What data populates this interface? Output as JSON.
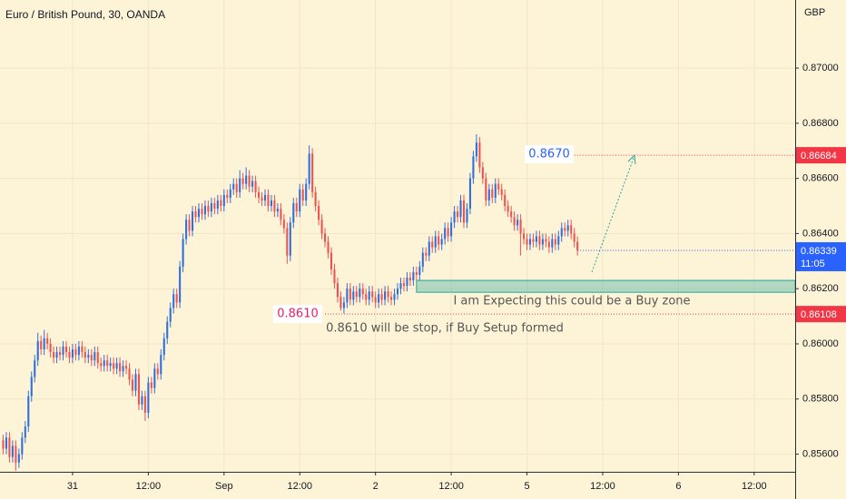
{
  "chart_data": {
    "type": "candlestick",
    "title": "Euro / British Pound, 30, OANDA",
    "currency": "GBP",
    "up_color": "#2f6fe0",
    "down_color": "#ef5350",
    "grid": true,
    "xlim": [
      0,
      252
    ],
    "ylim": [
      0.85536,
      0.87247
    ],
    "xticks": [
      {
        "value": 23,
        "label": "31"
      },
      {
        "value": 47,
        "label": "12:00"
      },
      {
        "value": 71,
        "label": "Sep"
      },
      {
        "value": 95,
        "label": "12:00"
      },
      {
        "value": 119,
        "label": "2"
      },
      {
        "value": 143,
        "label": "12:00"
      },
      {
        "value": 167,
        "label": "5"
      },
      {
        "value": 191,
        "label": "12:00"
      },
      {
        "value": 215,
        "label": "6"
      },
      {
        "value": 239,
        "label": "12:00"
      }
    ],
    "yticks": [
      {
        "value": 0.856,
        "label": "0.85600"
      },
      {
        "value": 0.858,
        "label": "0.85800"
      },
      {
        "value": 0.86,
        "label": "0.86000"
      },
      {
        "value": 0.862,
        "label": "0.86200"
      },
      {
        "value": 0.864,
        "label": "0.86400"
      },
      {
        "value": 0.866,
        "label": "0.86600"
      },
      {
        "value": 0.868,
        "label": "0.86800"
      },
      {
        "value": 0.87,
        "label": "0.87000"
      }
    ],
    "x": [
      1,
      2,
      3,
      4,
      5,
      6,
      7,
      8,
      9,
      10,
      11,
      12,
      13,
      14,
      15,
      16,
      17,
      18,
      19,
      20,
      21,
      22,
      23,
      24,
      25,
      26,
      27,
      28,
      29,
      30,
      31,
      32,
      33,
      34,
      35,
      36,
      37,
      38,
      39,
      40,
      41,
      42,
      43,
      44,
      45,
      46,
      47,
      48,
      49,
      50,
      51,
      52,
      53,
      54,
      55,
      56,
      57,
      58,
      59,
      60,
      61,
      62,
      63,
      64,
      65,
      66,
      67,
      68,
      69,
      70,
      71,
      72,
      73,
      74,
      75,
      76,
      77,
      78,
      79,
      80,
      81,
      82,
      83,
      84,
      85,
      86,
      87,
      88,
      89,
      90,
      91,
      92,
      93,
      94,
      95,
      96,
      97,
      98,
      99,
      100,
      101,
      102,
      103,
      104,
      105,
      106,
      107,
      108,
      109,
      110,
      111,
      112,
      113,
      114,
      115,
      116,
      117,
      118,
      119,
      120,
      121,
      122,
      123,
      124,
      125,
      126,
      127,
      128,
      129,
      130,
      131,
      132,
      133,
      134,
      135,
      136,
      137,
      138,
      139,
      140,
      141,
      142,
      143,
      144,
      145,
      146,
      147,
      148,
      149,
      150,
      151,
      152,
      153,
      154,
      155,
      156,
      157,
      158,
      159,
      160,
      161,
      162,
      163,
      164,
      165,
      166,
      167,
      168,
      169,
      170,
      171,
      172,
      173,
      174,
      175,
      176,
      177,
      178,
      179,
      180,
      181,
      182,
      183
    ],
    "ohlc": [
      [
        0.8565,
        0.8567,
        0.856,
        0.8562
      ],
      [
        0.8562,
        0.8568,
        0.856,
        0.8566
      ],
      [
        0.8566,
        0.8568,
        0.8557,
        0.8559
      ],
      [
        0.8559,
        0.8565,
        0.8557,
        0.8563
      ],
      [
        0.8563,
        0.8565,
        0.8554,
        0.8557
      ],
      [
        0.8557,
        0.8562,
        0.8555,
        0.856
      ],
      [
        0.856,
        0.8568,
        0.8558,
        0.8566
      ],
      [
        0.8566,
        0.8572,
        0.8564,
        0.857
      ],
      [
        0.857,
        0.8583,
        0.8568,
        0.8581
      ],
      [
        0.8581,
        0.859,
        0.8579,
        0.8588
      ],
      [
        0.8588,
        0.8596,
        0.8586,
        0.8594
      ],
      [
        0.8594,
        0.8604,
        0.8592,
        0.8601
      ],
      [
        0.8601,
        0.8603,
        0.8596,
        0.8598
      ],
      [
        0.8598,
        0.8605,
        0.8596,
        0.8602
      ],
      [
        0.8602,
        0.8604,
        0.8598,
        0.86
      ],
      [
        0.86,
        0.8602,
        0.8595,
        0.8597
      ],
      [
        0.8597,
        0.8599,
        0.8593,
        0.8595
      ],
      [
        0.8595,
        0.8599,
        0.8593,
        0.8597
      ],
      [
        0.8597,
        0.8599,
        0.8594,
        0.8596
      ],
      [
        0.8596,
        0.8601,
        0.8594,
        0.8599
      ],
      [
        0.8599,
        0.8601,
        0.8595,
        0.8597
      ],
      [
        0.8597,
        0.8599,
        0.8593,
        0.8595
      ],
      [
        0.8595,
        0.86,
        0.8593,
        0.8598
      ],
      [
        0.8598,
        0.86,
        0.8594,
        0.8596
      ],
      [
        0.8596,
        0.8601,
        0.8594,
        0.8599
      ],
      [
        0.8599,
        0.8601,
        0.8595,
        0.8597
      ],
      [
        0.8597,
        0.8599,
        0.8593,
        0.8595
      ],
      [
        0.8595,
        0.8598,
        0.8593,
        0.8596
      ],
      [
        0.8596,
        0.8598,
        0.8592,
        0.8594
      ],
      [
        0.8594,
        0.8599,
        0.8592,
        0.8597
      ],
      [
        0.8597,
        0.8599,
        0.8591,
        0.8593
      ],
      [
        0.8593,
        0.8595,
        0.859,
        0.8592
      ],
      [
        0.8592,
        0.8596,
        0.859,
        0.8594
      ],
      [
        0.8594,
        0.8596,
        0.859,
        0.8592
      ],
      [
        0.8592,
        0.8595,
        0.859,
        0.8593
      ],
      [
        0.8593,
        0.8595,
        0.8589,
        0.8591
      ],
      [
        0.8591,
        0.8595,
        0.8589,
        0.8593
      ],
      [
        0.8593,
        0.8595,
        0.8588,
        0.859
      ],
      [
        0.859,
        0.8594,
        0.8588,
        0.8592
      ],
      [
        0.8592,
        0.8594,
        0.8589,
        0.8591
      ],
      [
        0.8591,
        0.8593,
        0.8585,
        0.8587
      ],
      [
        0.8587,
        0.8589,
        0.8581,
        0.8583
      ],
      [
        0.8583,
        0.8591,
        0.8581,
        0.8589
      ],
      [
        0.8589,
        0.8591,
        0.8576,
        0.8578
      ],
      [
        0.8578,
        0.8583,
        0.8576,
        0.8581
      ],
      [
        0.8581,
        0.8583,
        0.8572,
        0.8575
      ],
      [
        0.8575,
        0.8588,
        0.8573,
        0.8586
      ],
      [
        0.8586,
        0.8588,
        0.8582,
        0.8584
      ],
      [
        0.8584,
        0.8593,
        0.8582,
        0.8591
      ],
      [
        0.8591,
        0.8593,
        0.8587,
        0.8589
      ],
      [
        0.8589,
        0.8598,
        0.8587,
        0.8596
      ],
      [
        0.8596,
        0.8604,
        0.8594,
        0.8602
      ],
      [
        0.8602,
        0.861,
        0.86,
        0.8608
      ],
      [
        0.8608,
        0.8615,
        0.8606,
        0.8613
      ],
      [
        0.8613,
        0.862,
        0.8611,
        0.8618
      ],
      [
        0.8618,
        0.862,
        0.8613,
        0.8615
      ],
      [
        0.8615,
        0.863,
        0.8613,
        0.8628
      ],
      [
        0.8628,
        0.864,
        0.8626,
        0.8638
      ],
      [
        0.8638,
        0.8647,
        0.8636,
        0.8645
      ],
      [
        0.8645,
        0.8647,
        0.8639,
        0.8641
      ],
      [
        0.8641,
        0.865,
        0.8639,
        0.8648
      ],
      [
        0.8648,
        0.865,
        0.8644,
        0.8646
      ],
      [
        0.8646,
        0.8651,
        0.8644,
        0.8649
      ],
      [
        0.8649,
        0.8651,
        0.8645,
        0.8647
      ],
      [
        0.8647,
        0.8652,
        0.8645,
        0.865
      ],
      [
        0.865,
        0.8652,
        0.8646,
        0.8648
      ],
      [
        0.8648,
        0.8653,
        0.8646,
        0.8651
      ],
      [
        0.8651,
        0.8653,
        0.8647,
        0.8649
      ],
      [
        0.8649,
        0.8654,
        0.8647,
        0.8652
      ],
      [
        0.8652,
        0.8654,
        0.8648,
        0.865
      ],
      [
        0.865,
        0.8656,
        0.8648,
        0.8654
      ],
      [
        0.8654,
        0.8656,
        0.8651,
        0.8653
      ],
      [
        0.8653,
        0.8658,
        0.8651,
        0.8656
      ],
      [
        0.8656,
        0.866,
        0.8654,
        0.8658
      ],
      [
        0.8658,
        0.866,
        0.8653,
        0.8655
      ],
      [
        0.8655,
        0.8663,
        0.8653,
        0.866
      ],
      [
        0.866,
        0.8662,
        0.8656,
        0.8658
      ],
      [
        0.8658,
        0.8664,
        0.8656,
        0.8661
      ],
      [
        0.8661,
        0.8663,
        0.8655,
        0.8657
      ],
      [
        0.8657,
        0.8661,
        0.8655,
        0.8659
      ],
      [
        0.8659,
        0.8661,
        0.8653,
        0.8655
      ],
      [
        0.8655,
        0.8657,
        0.8651,
        0.8653
      ],
      [
        0.8653,
        0.8655,
        0.865,
        0.8652
      ],
      [
        0.8652,
        0.8656,
        0.865,
        0.8654
      ],
      [
        0.8654,
        0.8656,
        0.8648,
        0.865
      ],
      [
        0.865,
        0.8654,
        0.8648,
        0.8652
      ],
      [
        0.8652,
        0.8654,
        0.8646,
        0.8648
      ],
      [
        0.8648,
        0.8651,
        0.8646,
        0.8649
      ],
      [
        0.8649,
        0.8651,
        0.8643,
        0.8645
      ],
      [
        0.8645,
        0.8647,
        0.864,
        0.8642
      ],
      [
        0.8642,
        0.8644,
        0.8629,
        0.8632
      ],
      [
        0.8632,
        0.8646,
        0.863,
        0.8644
      ],
      [
        0.8644,
        0.8653,
        0.8642,
        0.8651
      ],
      [
        0.8651,
        0.8653,
        0.8646,
        0.8648
      ],
      [
        0.8648,
        0.8658,
        0.8646,
        0.8656
      ],
      [
        0.8656,
        0.8658,
        0.865,
        0.8652
      ],
      [
        0.8652,
        0.866,
        0.865,
        0.8658
      ],
      [
        0.8658,
        0.8672,
        0.8656,
        0.8669
      ],
      [
        0.8669,
        0.8671,
        0.8653,
        0.8655
      ],
      [
        0.8655,
        0.8657,
        0.8648,
        0.865
      ],
      [
        0.865,
        0.8652,
        0.8643,
        0.8645
      ],
      [
        0.8645,
        0.8647,
        0.8638,
        0.864
      ],
      [
        0.864,
        0.8642,
        0.8635,
        0.8637
      ],
      [
        0.8637,
        0.8639,
        0.8631,
        0.8633
      ],
      [
        0.8633,
        0.8635,
        0.8625,
        0.8627
      ],
      [
        0.8627,
        0.8629,
        0.862,
        0.8622
      ],
      [
        0.8622,
        0.8624,
        0.8615,
        0.8617
      ],
      [
        0.8617,
        0.8619,
        0.8612,
        0.8613
      ],
      [
        0.8613,
        0.8617,
        0.8611,
        0.8615
      ],
      [
        0.8615,
        0.8622,
        0.8613,
        0.862
      ],
      [
        0.862,
        0.8622,
        0.8614,
        0.8616
      ],
      [
        0.8616,
        0.8621,
        0.8614,
        0.8619
      ],
      [
        0.8619,
        0.8621,
        0.8615,
        0.8617
      ],
      [
        0.8617,
        0.8622,
        0.8615,
        0.862
      ],
      [
        0.862,
        0.8622,
        0.8616,
        0.8618
      ],
      [
        0.8618,
        0.862,
        0.8614,
        0.8616
      ],
      [
        0.8616,
        0.8621,
        0.8614,
        0.8619
      ],
      [
        0.8619,
        0.8621,
        0.8615,
        0.8617
      ],
      [
        0.8617,
        0.8619,
        0.8613,
        0.8615
      ],
      [
        0.8615,
        0.862,
        0.8613,
        0.8618
      ],
      [
        0.8618,
        0.862,
        0.8614,
        0.8616
      ],
      [
        0.8616,
        0.8621,
        0.8614,
        0.8619
      ],
      [
        0.8619,
        0.8621,
        0.8615,
        0.8617
      ],
      [
        0.8617,
        0.8619,
        0.8614,
        0.8616
      ],
      [
        0.8616,
        0.862,
        0.8614,
        0.8618
      ],
      [
        0.8618,
        0.8622,
        0.8616,
        0.862
      ],
      [
        0.862,
        0.8624,
        0.8618,
        0.8622
      ],
      [
        0.8622,
        0.8624,
        0.8619,
        0.8621
      ],
      [
        0.8621,
        0.8626,
        0.8619,
        0.8624
      ],
      [
        0.8624,
        0.8626,
        0.8621,
        0.8623
      ],
      [
        0.8623,
        0.8628,
        0.8621,
        0.8626
      ],
      [
        0.8626,
        0.8628,
        0.8623,
        0.8625
      ],
      [
        0.8625,
        0.863,
        0.8623,
        0.8628
      ],
      [
        0.8628,
        0.8635,
        0.8626,
        0.8633
      ],
      [
        0.8633,
        0.8635,
        0.863,
        0.8632
      ],
      [
        0.8632,
        0.8639,
        0.863,
        0.8637
      ],
      [
        0.8637,
        0.8639,
        0.8633,
        0.8635
      ],
      [
        0.8635,
        0.8641,
        0.8633,
        0.8639
      ],
      [
        0.8639,
        0.8641,
        0.8634,
        0.8636
      ],
      [
        0.8636,
        0.864,
        0.8634,
        0.8638
      ],
      [
        0.8638,
        0.8644,
        0.8636,
        0.8642
      ],
      [
        0.8642,
        0.8644,
        0.8637,
        0.8639
      ],
      [
        0.8639,
        0.8646,
        0.8637,
        0.8644
      ],
      [
        0.8644,
        0.865,
        0.8642,
        0.8648
      ],
      [
        0.8648,
        0.865,
        0.8644,
        0.8646
      ],
      [
        0.8646,
        0.8654,
        0.8644,
        0.8652
      ],
      [
        0.8652,
        0.8654,
        0.8642,
        0.8644
      ],
      [
        0.8644,
        0.8651,
        0.8642,
        0.8649
      ],
      [
        0.8649,
        0.8662,
        0.8647,
        0.866
      ],
      [
        0.866,
        0.867,
        0.8658,
        0.8668
      ],
      [
        0.8668,
        0.8676,
        0.8666,
        0.8673
      ],
      [
        0.8673,
        0.8675,
        0.8662,
        0.8664
      ],
      [
        0.8664,
        0.8666,
        0.8658,
        0.866
      ],
      [
        0.866,
        0.8662,
        0.865,
        0.8652
      ],
      [
        0.8652,
        0.8658,
        0.865,
        0.8656
      ],
      [
        0.8656,
        0.8658,
        0.8651,
        0.8653
      ],
      [
        0.8653,
        0.866,
        0.8651,
        0.8658
      ],
      [
        0.8658,
        0.866,
        0.8654,
        0.8656
      ],
      [
        0.8656,
        0.8658,
        0.8652,
        0.8654
      ],
      [
        0.8654,
        0.8656,
        0.8648,
        0.865
      ],
      [
        0.865,
        0.8652,
        0.8646,
        0.8648
      ],
      [
        0.8648,
        0.865,
        0.8644,
        0.8646
      ],
      [
        0.8646,
        0.8648,
        0.8641,
        0.8643
      ],
      [
        0.8643,
        0.8647,
        0.8641,
        0.8645
      ],
      [
        0.8645,
        0.8647,
        0.8632,
        0.864
      ],
      [
        0.864,
        0.8642,
        0.8636,
        0.8638
      ],
      [
        0.8638,
        0.864,
        0.8634,
        0.8636
      ],
      [
        0.8636,
        0.864,
        0.8634,
        0.8638
      ],
      [
        0.8638,
        0.864,
        0.8635,
        0.8637
      ],
      [
        0.8637,
        0.8641,
        0.8635,
        0.8639
      ],
      [
        0.8639,
        0.8641,
        0.8634,
        0.8636
      ],
      [
        0.8636,
        0.864,
        0.8634,
        0.8638
      ],
      [
        0.8638,
        0.864,
        0.8635,
        0.8637
      ],
      [
        0.8637,
        0.8639,
        0.8633,
        0.8635
      ],
      [
        0.8635,
        0.864,
        0.8633,
        0.8638
      ],
      [
        0.8638,
        0.864,
        0.8634,
        0.8636
      ],
      [
        0.8636,
        0.8641,
        0.8634,
        0.8639
      ],
      [
        0.8639,
        0.8644,
        0.8637,
        0.8642
      ],
      [
        0.8642,
        0.8644,
        0.8639,
        0.8641
      ],
      [
        0.8641,
        0.8645,
        0.8639,
        0.8643
      ],
      [
        0.8643,
        0.8645,
        0.8638,
        0.864
      ],
      [
        0.864,
        0.8642,
        0.8635,
        0.8637
      ],
      [
        0.8637,
        0.8639,
        0.8632,
        0.8634
      ]
    ],
    "price_lines": [
      {
        "value": 0.86684,
        "label": "0.86684",
        "color": "#f23645",
        "from": 182
      },
      {
        "value": 0.86108,
        "label": "0.86108",
        "color": "#f23645",
        "from": 103
      }
    ],
    "last_price": {
      "value": 0.86339,
      "label": "0.86339",
      "countdown": "11:05",
      "color": "#2962ff"
    },
    "zone": {
      "x": [
        132,
        252
      ],
      "y": [
        0.86187,
        0.8623
      ]
    },
    "annotations": [
      "0.8670",
      "0.8610",
      "I am Expecting this could be a Buy zone",
      "0.8610 will be stop, if Buy Setup formed"
    ]
  }
}
